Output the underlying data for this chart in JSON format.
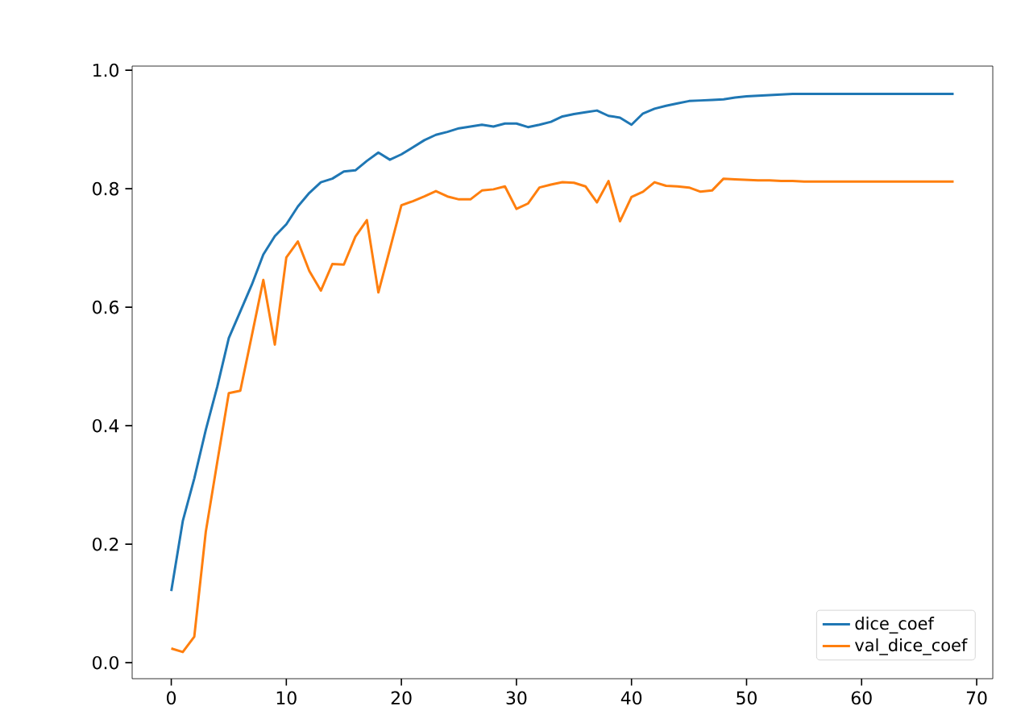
{
  "chart_data": {
    "type": "line",
    "x": [
      0,
      1,
      2,
      3,
      4,
      5,
      6,
      7,
      8,
      9,
      10,
      11,
      12,
      13,
      14,
      15,
      16,
      17,
      18,
      19,
      20,
      21,
      22,
      23,
      24,
      25,
      26,
      27,
      28,
      29,
      30,
      31,
      32,
      33,
      34,
      35,
      36,
      37,
      38,
      39,
      40,
      41,
      42,
      43,
      44,
      45,
      46,
      47,
      48,
      49,
      50,
      51,
      52,
      53,
      54,
      55,
      56,
      57,
      58,
      59,
      60,
      61,
      62,
      63,
      64,
      65,
      66,
      67,
      68
    ],
    "series": [
      {
        "name": "dice_coef",
        "color": "#1f77b4",
        "values": [
          0.121,
          0.239,
          0.311,
          0.393,
          0.466,
          0.548,
          0.593,
          0.638,
          0.689,
          0.72,
          0.74,
          0.77,
          0.793,
          0.811,
          0.817,
          0.829,
          0.831,
          0.847,
          0.861,
          0.849,
          0.858,
          0.87,
          0.882,
          0.891,
          0.896,
          0.902,
          0.905,
          0.908,
          0.905,
          0.91,
          0.91,
          0.904,
          0.908,
          0.913,
          0.922,
          0.926,
          0.929,
          0.932,
          0.923,
          0.92,
          0.908,
          0.927,
          0.935,
          0.94,
          0.944,
          0.948,
          0.949,
          0.95,
          0.951,
          0.954,
          0.956,
          0.957,
          0.958,
          0.959,
          0.96,
          0.96,
          0.96,
          0.96,
          0.96,
          0.96,
          0.96,
          0.96,
          0.96,
          0.96,
          0.96,
          0.96,
          0.96,
          0.96,
          0.96
        ]
      },
      {
        "name": "val_dice_coef",
        "color": "#ff7f0e",
        "values": [
          0.024,
          0.018,
          0.044,
          0.221,
          0.339,
          0.455,
          0.459,
          0.552,
          0.646,
          0.537,
          0.684,
          0.711,
          0.661,
          0.628,
          0.673,
          0.672,
          0.719,
          0.747,
          0.625,
          0.698,
          0.772,
          0.779,
          0.787,
          0.796,
          0.787,
          0.782,
          0.782,
          0.797,
          0.799,
          0.804,
          0.766,
          0.775,
          0.802,
          0.807,
          0.811,
          0.81,
          0.804,
          0.777,
          0.813,
          0.745,
          0.786,
          0.795,
          0.811,
          0.805,
          0.804,
          0.802,
          0.795,
          0.797,
          0.817,
          0.816,
          0.815,
          0.814,
          0.814,
          0.813,
          0.813,
          0.812,
          0.812,
          0.812,
          0.812,
          0.812,
          0.812,
          0.812,
          0.812,
          0.812,
          0.812,
          0.812,
          0.812,
          0.812,
          0.812
        ]
      }
    ],
    "xlim": [
      -3.4,
      71.4
    ],
    "ylim": [
      -0.027,
      1.007
    ],
    "xticks": [
      0,
      10,
      20,
      30,
      40,
      50,
      60,
      70
    ],
    "yticks": [
      {
        "value": 0,
        "label": "0.0"
      },
      {
        "value": 0.2,
        "label": "0.2"
      },
      {
        "value": 0.4,
        "label": "0.4"
      },
      {
        "value": 0.6,
        "label": "0.6"
      },
      {
        "value": 0.8,
        "label": "0.8"
      },
      {
        "value": 1,
        "label": "1.0"
      }
    ],
    "legend": "bottom right",
    "grid": false,
    "marker": "none",
    "line_style": "solid"
  }
}
